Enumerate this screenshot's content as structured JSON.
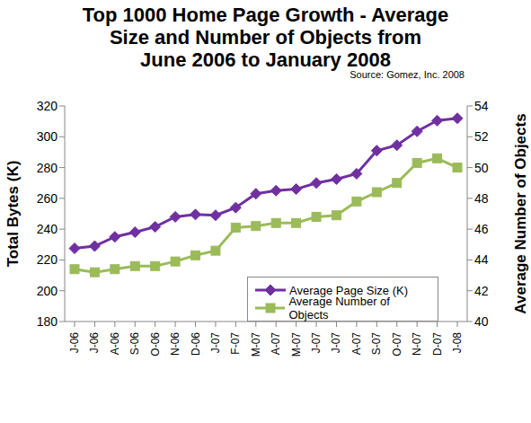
{
  "chart_data": {
    "type": "line",
    "title": "Top 1000 Home Page Growth - Average\nSize and Number of Objects from\nJune 2006 to January 2008",
    "annotation": "Source: Gomez, Inc. 2008",
    "y_label": "Total Bytes (K)",
    "y2_label": "Average Number of Objects",
    "categories": [
      "J-06",
      "J-06",
      "A-06",
      "S-06",
      "O-06",
      "N-06",
      "D-06",
      "J-07",
      "F-07",
      "M-07",
      "A-07",
      "M-07",
      "J-07",
      "J-07",
      "A-07",
      "S-07",
      "O-07",
      "N-07",
      "D-07",
      "J-08"
    ],
    "series": [
      {
        "name": "Average Page Size (K)",
        "color": "#7030a0",
        "marker": "diamond",
        "values": [
          227.5,
          229,
          235,
          238,
          241.5,
          248,
          249.5,
          249,
          254,
          263,
          265,
          266,
          270,
          272.5,
          276,
          291,
          294.5,
          303.5,
          310.5,
          312
        ]
      },
      {
        "name": "Average Number of Objects",
        "color": "#9bbb59",
        "marker": "square",
        "axis": "y2",
        "values": [
          43.4,
          43.2,
          43.4,
          43.6,
          43.6,
          43.9,
          44.3,
          44.6,
          46.1,
          46.2,
          46.4,
          46.4,
          46.8,
          46.9,
          47.8,
          48.4,
          49.0,
          50.3,
          50.6,
          50.0
        ]
      }
    ],
    "ylim": [
      180,
      320
    ],
    "yticks": [
      180,
      200,
      220,
      240,
      260,
      280,
      300,
      320
    ],
    "y2lim": [
      40,
      54
    ],
    "y2ticks": [
      40,
      42,
      44,
      46,
      48,
      50,
      52,
      54
    ],
    "grid": false,
    "legend": "lower right"
  }
}
